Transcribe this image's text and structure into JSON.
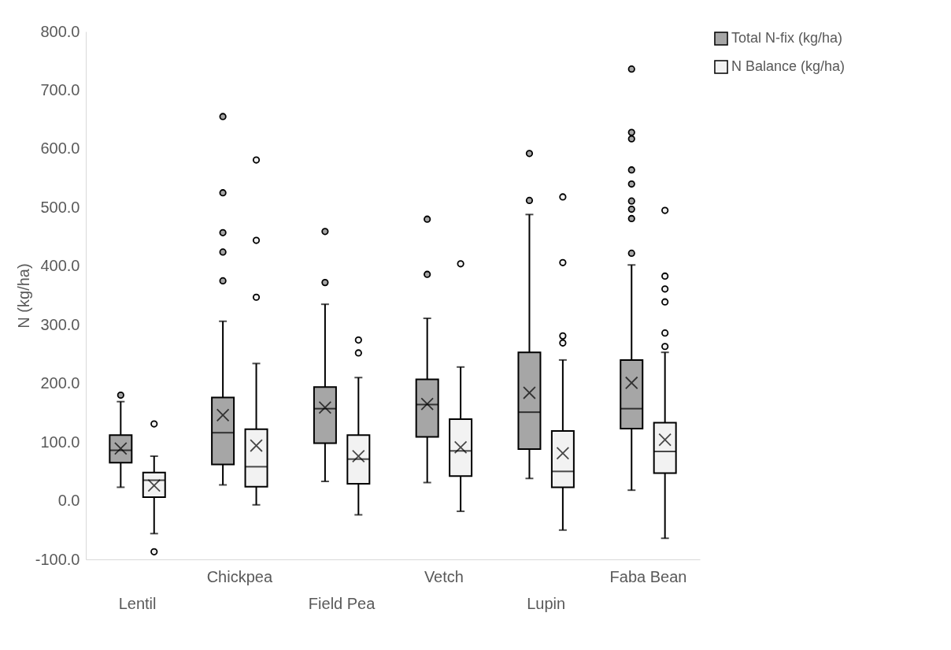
{
  "chart_data": {
    "type": "box",
    "ylabel": "N (kg/ha)",
    "categories": [
      "Lentil",
      "Chickpea",
      "Field Pea",
      "Vetch",
      "Lupin",
      "Faba Bean"
    ],
    "ylim": [
      -100,
      800
    ],
    "yticks": [
      {
        "value": -100,
        "label": "-100.0"
      },
      {
        "value": 0,
        "label": "0.0"
      },
      {
        "value": 100,
        "label": "100.0"
      },
      {
        "value": 200,
        "label": "200.0"
      },
      {
        "value": 300,
        "label": "300.0"
      },
      {
        "value": 400,
        "label": "400.0"
      },
      {
        "value": 500,
        "label": "500.0"
      },
      {
        "value": 600,
        "label": "600.0"
      },
      {
        "value": 700,
        "label": "700.0"
      },
      {
        "value": 800,
        "label": "800.0"
      }
    ],
    "grid": false,
    "legend": "right",
    "series": [
      {
        "name": "Total N-fix (kg/ha)",
        "color": "#a6a6a6",
        "boxes": [
          {
            "low": 23,
            "q1": 65,
            "median": 86,
            "q3": 112,
            "high": 169,
            "mean": 89,
            "outliers": [
              180
            ]
          },
          {
            "low": 27,
            "q1": 62,
            "median": 116,
            "q3": 176,
            "high": 306,
            "mean": 146,
            "outliers": [
              375,
              424,
              457,
              525,
              655
            ]
          },
          {
            "low": 33,
            "q1": 98,
            "median": 157,
            "q3": 194,
            "high": 335,
            "mean": 159,
            "outliers": [
              372,
              459
            ]
          },
          {
            "low": 31,
            "q1": 109,
            "median": 164,
            "q3": 207,
            "high": 311,
            "mean": 165,
            "outliers": [
              386,
              480
            ]
          },
          {
            "low": 38,
            "q1": 88,
            "median": 151,
            "q3": 253,
            "high": 488,
            "mean": 184,
            "outliers": [
              512,
              592
            ]
          },
          {
            "low": 18,
            "q1": 123,
            "median": 157,
            "q3": 240,
            "high": 402,
            "mean": 201,
            "outliers": [
              422,
              481,
              497,
              511,
              540,
              564,
              617,
              628,
              736
            ]
          }
        ]
      },
      {
        "name": "N Balance (kg/ha)",
        "color": "#f2f2f2",
        "boxes": [
          {
            "low": -56,
            "q1": 6,
            "median": 35,
            "q3": 48,
            "high": 76,
            "mean": 26,
            "outliers": [
              -87,
              131
            ]
          },
          {
            "low": -7,
            "q1": 24,
            "median": 58,
            "q3": 122,
            "high": 234,
            "mean": 94,
            "outliers": [
              347,
              444,
              581
            ]
          },
          {
            "low": -24,
            "q1": 29,
            "median": 71,
            "q3": 112,
            "high": 210,
            "mean": 76,
            "outliers": [
              252,
              274
            ]
          },
          {
            "low": -18,
            "q1": 42,
            "median": 85,
            "q3": 139,
            "high": 228,
            "mean": 91,
            "outliers": [
              404
            ]
          },
          {
            "low": -50,
            "q1": 23,
            "median": 50,
            "q3": 119,
            "high": 240,
            "mean": 81,
            "outliers": [
              269,
              281,
              406,
              518
            ]
          },
          {
            "low": -64,
            "q1": 47,
            "median": 84,
            "q3": 133,
            "high": 253,
            "mean": 104,
            "outliers": [
              263,
              286,
              339,
              361,
              383,
              495
            ]
          }
        ]
      }
    ]
  }
}
